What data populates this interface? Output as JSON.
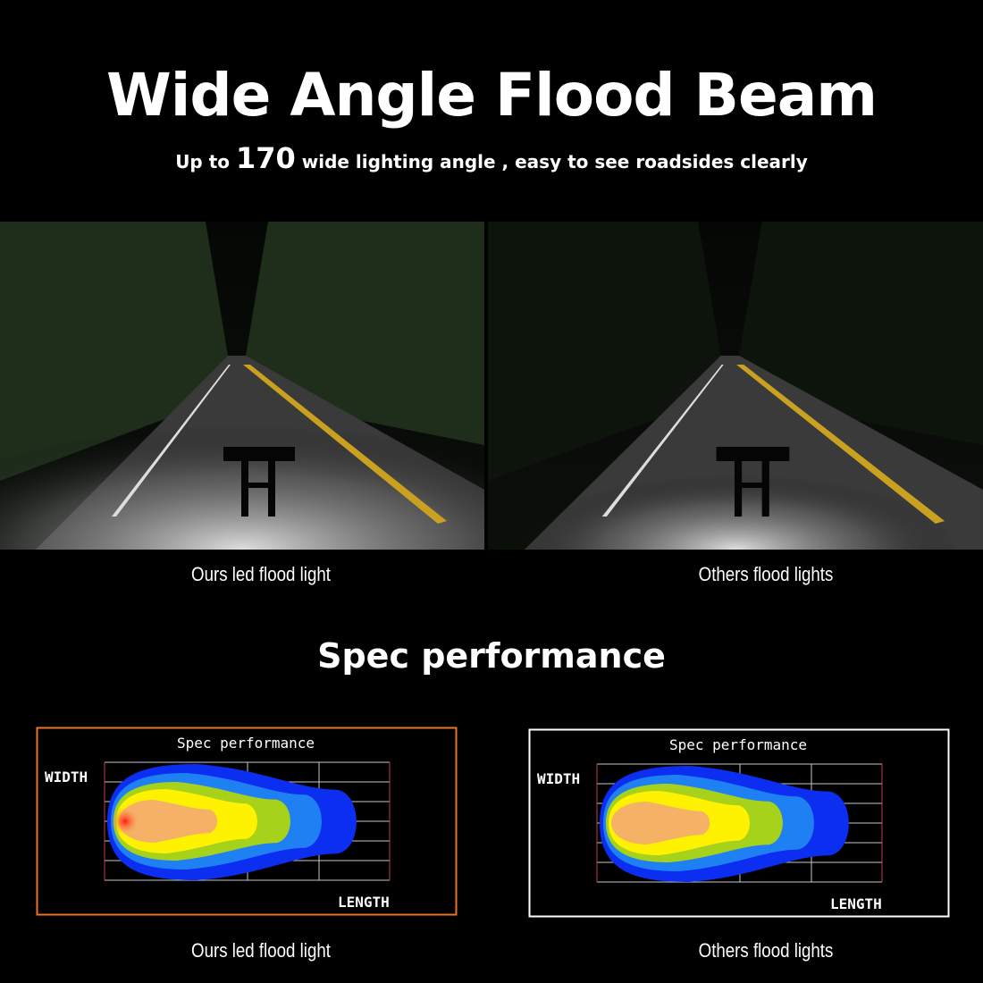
{
  "header": {
    "title": "Wide Angle Flood Beam",
    "subtitle_pre": "Up to ",
    "subtitle_num": "170",
    "subtitle_post": " wide lighting angle ,  easy to see roadsides clearly"
  },
  "photos": [
    {
      "caption": "Ours  led  flood light",
      "beam": "wide"
    },
    {
      "caption": "Others  flood  lights",
      "beam": "narrow"
    }
  ],
  "spec_heading": "Spec  performance",
  "spec_boxes": [
    {
      "title": "Spec performance",
      "ylabel": "WIDTH",
      "xlabel": "LENGTH",
      "border_color": "#e8742a",
      "hotspot": true,
      "caption": "Ours  led  flood light"
    },
    {
      "title": "Spec performance",
      "ylabel": "WIDTH",
      "xlabel": "LENGTH",
      "border_color": "#ffffff",
      "hotspot": false,
      "caption": "Others  flood  lights"
    }
  ],
  "beam_colors": [
    "#0b2ef0",
    "#1e80f2",
    "#a6d21c",
    "#fff200",
    "#f5b266",
    "#ff1a10"
  ],
  "grid_color": "#c8c8c8",
  "grid_edge_color": "#c0404a"
}
